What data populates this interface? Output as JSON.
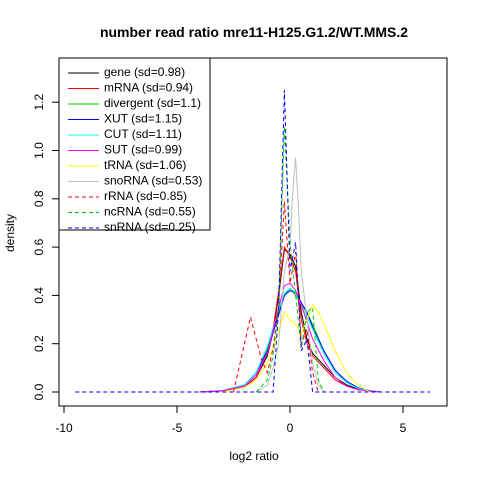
{
  "chart_data": {
    "type": "line",
    "title": "number read ratio mre11-H125.G1.2/WT.MMS.2",
    "xlabel": "log2 ratio",
    "ylabel": "density",
    "xlim": [
      -10,
      7
    ],
    "ylim": [
      0,
      1.25
    ],
    "xticks": [
      -10,
      -5,
      0,
      5
    ],
    "yticks": [
      0.0,
      0.2,
      0.4,
      0.6,
      0.8,
      1.0,
      1.2
    ],
    "legend_position": "top-left",
    "series": [
      {
        "name": "gene (sd=0.98)",
        "color": "#000000",
        "dash": "solid",
        "x": [
          -4,
          -3,
          -2,
          -1.5,
          -1,
          -0.75,
          -0.5,
          -0.25,
          0,
          0.25,
          0.5,
          0.75,
          1,
          1.5,
          2,
          2.5,
          3,
          3.5,
          4
        ],
        "y": [
          0,
          0.005,
          0.02,
          0.06,
          0.15,
          0.25,
          0.4,
          0.59,
          0.57,
          0.52,
          0.33,
          0.22,
          0.16,
          0.11,
          0.06,
          0.03,
          0.012,
          0.005,
          0
        ]
      },
      {
        "name": "mRNA (sd=0.94)",
        "color": "#ff0000",
        "dash": "solid",
        "x": [
          -4,
          -3,
          -2,
          -1.5,
          -1,
          -0.75,
          -0.5,
          -0.25,
          0,
          0.25,
          0.5,
          0.75,
          1,
          1.5,
          2,
          2.5,
          3,
          3.5,
          4
        ],
        "y": [
          0,
          0.005,
          0.02,
          0.06,
          0.16,
          0.26,
          0.42,
          0.6,
          0.56,
          0.5,
          0.3,
          0.2,
          0.15,
          0.1,
          0.05,
          0.025,
          0.01,
          0.004,
          0
        ]
      },
      {
        "name": "divergent (sd=1.1)",
        "color": "#00cd00",
        "dash": "solid",
        "x": [
          -4,
          -3,
          -2,
          -1.5,
          -1,
          -0.5,
          -0.25,
          0,
          0.25,
          0.5,
          0.75,
          1,
          1.5,
          2,
          2.5,
          3,
          3.5,
          4
        ],
        "y": [
          0,
          0.005,
          0.03,
          0.08,
          0.18,
          0.33,
          0.4,
          0.43,
          0.4,
          0.36,
          0.33,
          0.28,
          0.17,
          0.09,
          0.04,
          0.015,
          0.005,
          0
        ]
      },
      {
        "name": "XUT (sd=1.15)",
        "color": "#0000ff",
        "dash": "solid",
        "x": [
          -4,
          -3,
          -2,
          -1.5,
          -1,
          -0.5,
          -0.25,
          0,
          0.25,
          0.5,
          0.75,
          1,
          1.5,
          2,
          2.5,
          3,
          3.5,
          4
        ],
        "y": [
          0,
          0.005,
          0.03,
          0.08,
          0.17,
          0.32,
          0.4,
          0.42,
          0.41,
          0.37,
          0.33,
          0.27,
          0.17,
          0.09,
          0.045,
          0.018,
          0.006,
          0
        ]
      },
      {
        "name": "CUT (sd=1.11)",
        "color": "#00ffff",
        "dash": "solid",
        "x": [
          -4,
          -3,
          -2,
          -1.5,
          -1,
          -0.5,
          -0.25,
          0,
          0.25,
          0.5,
          0.75,
          1,
          1.5,
          2,
          2.5,
          3,
          3.5,
          4
        ],
        "y": [
          0,
          0.005,
          0.03,
          0.08,
          0.19,
          0.34,
          0.41,
          0.43,
          0.41,
          0.36,
          0.31,
          0.26,
          0.16,
          0.08,
          0.04,
          0.015,
          0.005,
          0
        ]
      },
      {
        "name": "SUT (sd=0.99)",
        "color": "#ff00ff",
        "dash": "solid",
        "x": [
          -4,
          -3,
          -2,
          -1.5,
          -1,
          -0.5,
          -0.25,
          0,
          0.25,
          0.5,
          0.75,
          1,
          1.5,
          2,
          2.5,
          3,
          3.5,
          4
        ],
        "y": [
          0,
          0.005,
          0.025,
          0.07,
          0.16,
          0.35,
          0.44,
          0.45,
          0.42,
          0.36,
          0.29,
          0.22,
          0.13,
          0.06,
          0.025,
          0.01,
          0.004,
          0
        ]
      },
      {
        "name": "tRNA (sd=1.06)",
        "color": "#ffff00",
        "dash": "solid",
        "x": [
          -3,
          -2,
          -1.5,
          -1,
          -0.5,
          -0.25,
          0,
          0.25,
          0.5,
          0.75,
          1,
          1.25,
          1.5,
          2,
          2.5,
          3,
          3.5
        ],
        "y": [
          0,
          0.02,
          0.05,
          0.12,
          0.25,
          0.33,
          0.3,
          0.28,
          0.24,
          0.3,
          0.36,
          0.33,
          0.28,
          0.17,
          0.08,
          0.03,
          0
        ]
      },
      {
        "name": "snoRNA (sd=0.53)",
        "color": "#bebebe",
        "dash": "solid",
        "x": [
          -1.5,
          -1,
          -0.75,
          -0.5,
          -0.25,
          0,
          0.1,
          0.25,
          0.4,
          0.5,
          0.75,
          1,
          1.25,
          1.5
        ],
        "y": [
          0,
          0.03,
          0.1,
          0.2,
          0.5,
          0.6,
          0.8,
          0.97,
          0.72,
          0.5,
          0.3,
          0.12,
          0.03,
          0
        ]
      },
      {
        "name": "rRNA (sd=0.85)",
        "color": "#ff0000",
        "dash": "dashed",
        "x": [
          -2.5,
          -1.75,
          -1.25,
          -1,
          -0.75,
          -0.5,
          -0.25,
          0,
          0.25,
          0.5,
          0.75,
          1,
          1.25
        ],
        "y": [
          0,
          0.31,
          0.13,
          0.08,
          0.18,
          0.36,
          0.79,
          0.45,
          0.58,
          0.2,
          0.26,
          0.08,
          0
        ]
      },
      {
        "name": "ncRNA (sd=0.55)",
        "color": "#00cd00",
        "dash": "dashed",
        "x": [
          -1.5,
          -1,
          -0.75,
          -0.5,
          -0.25,
          0,
          0.25,
          0.5,
          0.75,
          1,
          1.25,
          1.5
        ],
        "y": [
          0,
          0.05,
          0.15,
          0.35,
          1.1,
          0.62,
          0.4,
          0.18,
          0.33,
          0.35,
          0.05,
          0
        ]
      },
      {
        "name": "snRNA (sd=0.25)",
        "color": "#0000ff",
        "dash": "dashed",
        "x": [
          -9.5,
          -0.75,
          -0.5,
          -0.25,
          0,
          0.25,
          0.5,
          0.75,
          1,
          6.2
        ],
        "y": [
          0,
          0,
          0.35,
          1.25,
          0.5,
          0.62,
          0.17,
          0.22,
          0,
          0
        ]
      }
    ]
  }
}
